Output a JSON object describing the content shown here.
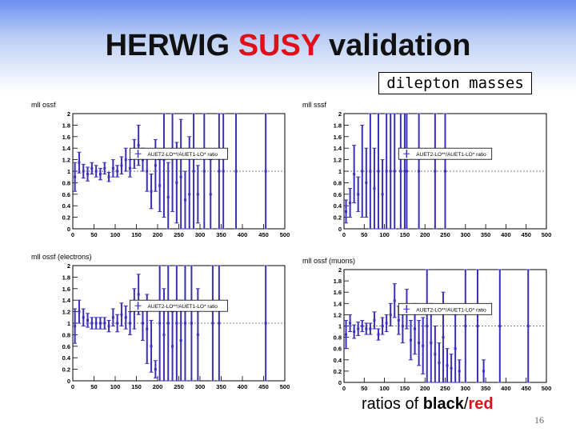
{
  "slide": {
    "title_part1": "HERWIG ",
    "title_accent": "SUSY",
    "title_part2": " validation",
    "tag": "dilepton masses",
    "footer_part1": "ratios of ",
    "footer_black": "black",
    "footer_sep": "/",
    "footer_red": "red",
    "page_number": "16",
    "accent_color": "#e0101a"
  },
  "chart_data": [
    {
      "type": "scatter",
      "title": "mll ossf",
      "legend": "AUET2-LO**/AUET1-LO* ratio",
      "series_color": "#3a2fb8",
      "xlim": [
        0,
        500
      ],
      "ylim": [
        0,
        2
      ],
      "xticks": [
        "0",
        "50",
        "100",
        "150",
        "200",
        "250",
        "300",
        "350",
        "400",
        "450",
        "500"
      ],
      "yticks": [
        "0",
        "0.2",
        "0.4",
        "0.6",
        "0.8",
        "1",
        "1.2",
        "1.4",
        "1.6",
        "1.8",
        "2"
      ],
      "reference_line": 1,
      "points": [
        {
          "x": 5,
          "y": 0.9,
          "err": 0.25
        },
        {
          "x": 15,
          "y": 1.15,
          "err": 0.18
        },
        {
          "x": 25,
          "y": 1.0,
          "err": 0.12
        },
        {
          "x": 35,
          "y": 0.95,
          "err": 0.12
        },
        {
          "x": 45,
          "y": 1.05,
          "err": 0.1
        },
        {
          "x": 55,
          "y": 1.0,
          "err": 0.1
        },
        {
          "x": 65,
          "y": 0.95,
          "err": 0.1
        },
        {
          "x": 75,
          "y": 1.05,
          "err": 0.1
        },
        {
          "x": 85,
          "y": 0.9,
          "err": 0.08
        },
        {
          "x": 95,
          "y": 1.05,
          "err": 0.15
        },
        {
          "x": 105,
          "y": 1.0,
          "err": 0.1
        },
        {
          "x": 115,
          "y": 1.1,
          "err": 0.15
        },
        {
          "x": 125,
          "y": 1.2,
          "err": 0.2
        },
        {
          "x": 135,
          "y": 1.05,
          "err": 0.15
        },
        {
          "x": 145,
          "y": 1.3,
          "err": 0.25
        },
        {
          "x": 155,
          "y": 1.45,
          "err": 0.35
        },
        {
          "x": 165,
          "y": 1.2,
          "err": 0.2
        },
        {
          "x": 175,
          "y": 1.0,
          "err": 0.35
        },
        {
          "x": 185,
          "y": 0.65,
          "err": 0.3
        },
        {
          "x": 195,
          "y": 1.1,
          "err": 0.45
        },
        {
          "x": 205,
          "y": 0.75,
          "err": 0.45
        },
        {
          "x": 215,
          "y": 1.2,
          "err": 1.0
        },
        {
          "x": 225,
          "y": 0.55,
          "err": 0.6
        },
        {
          "x": 235,
          "y": 1.3,
          "err": 1.0
        },
        {
          "x": 245,
          "y": 0.8,
          "err": 0.7
        },
        {
          "x": 255,
          "y": 0.9,
          "err": 1.0
        },
        {
          "x": 265,
          "y": 0.5,
          "err": 0.5
        },
        {
          "x": 275,
          "y": 0.6,
          "err": 1.0
        },
        {
          "x": 285,
          "y": 1.0,
          "err": 1.0
        },
        {
          "x": 295,
          "y": 0.6,
          "err": 0.5
        },
        {
          "x": 310,
          "y": 1.0,
          "err": 1.0
        },
        {
          "x": 325,
          "y": 0.6,
          "err": 0.6
        },
        {
          "x": 345,
          "y": 1.0,
          "err": 1.0
        },
        {
          "x": 355,
          "y": 1.0,
          "err": 1.0
        },
        {
          "x": 385,
          "y": 1.0,
          "err": 1.0
        },
        {
          "x": 455,
          "y": 1.0,
          "err": 1.0
        }
      ]
    },
    {
      "type": "scatter",
      "title": "mll sssf",
      "legend": "AUET2-LO**/AUET1-LO* ratio",
      "series_color": "#3a2fb8",
      "xlim": [
        0,
        500
      ],
      "ylim": [
        0,
        2
      ],
      "xticks": [
        "0",
        "50",
        "100",
        "150",
        "200",
        "250",
        "300",
        "350",
        "400",
        "450",
        "500"
      ],
      "yticks": [
        "0",
        "0.2",
        "0.4",
        "0.6",
        "0.8",
        "1",
        "1.2",
        "1.4",
        "1.6",
        "1.8",
        "2"
      ],
      "reference_line": 1,
      "points": [
        {
          "x": 5,
          "y": 0.3,
          "err": 0.2
        },
        {
          "x": 15,
          "y": 0.45,
          "err": 0.25
        },
        {
          "x": 25,
          "y": 0.95,
          "err": 0.5
        },
        {
          "x": 35,
          "y": 0.6,
          "err": 0.3
        },
        {
          "x": 45,
          "y": 1.0,
          "err": 0.8
        },
        {
          "x": 55,
          "y": 0.8,
          "err": 0.6
        },
        {
          "x": 65,
          "y": 1.0,
          "err": 1.0
        },
        {
          "x": 75,
          "y": 0.7,
          "err": 0.7
        },
        {
          "x": 85,
          "y": 1.0,
          "err": 1.0
        },
        {
          "x": 95,
          "y": 0.6,
          "err": 0.6
        },
        {
          "x": 105,
          "y": 1.0,
          "err": 1.0
        },
        {
          "x": 115,
          "y": 1.0,
          "err": 1.0
        },
        {
          "x": 125,
          "y": 1.0,
          "err": 1.0
        },
        {
          "x": 140,
          "y": 1.0,
          "err": 1.0
        },
        {
          "x": 150,
          "y": 1.0,
          "err": 1.0
        },
        {
          "x": 155,
          "y": 1.0,
          "err": 1.0
        },
        {
          "x": 185,
          "y": 1.0,
          "err": 1.0
        },
        {
          "x": 225,
          "y": 1.0,
          "err": 1.0
        },
        {
          "x": 250,
          "y": 1.0,
          "err": 1.0
        }
      ]
    },
    {
      "type": "scatter",
      "title": "mll ossf (electrons)",
      "legend": "AUET2-LO**/AUET1-LO* ratio",
      "series_color": "#3a2fb8",
      "xlim": [
        0,
        500
      ],
      "ylim": [
        0,
        2
      ],
      "xticks": [
        "0",
        "50",
        "100",
        "150",
        "200",
        "250",
        "300",
        "350",
        "400",
        "450",
        "500"
      ],
      "yticks": [
        "0",
        "0.2",
        "0.4",
        "0.6",
        "0.8",
        "1",
        "1.2",
        "1.4",
        "1.6",
        "1.8",
        "2"
      ],
      "reference_line": 1,
      "points": [
        {
          "x": 5,
          "y": 0.95,
          "err": 0.3
        },
        {
          "x": 15,
          "y": 1.2,
          "err": 0.2
        },
        {
          "x": 25,
          "y": 1.1,
          "err": 0.15
        },
        {
          "x": 35,
          "y": 1.05,
          "err": 0.12
        },
        {
          "x": 45,
          "y": 1.0,
          "err": 0.1
        },
        {
          "x": 55,
          "y": 1.0,
          "err": 0.1
        },
        {
          "x": 65,
          "y": 1.0,
          "err": 0.1
        },
        {
          "x": 75,
          "y": 1.0,
          "err": 0.1
        },
        {
          "x": 85,
          "y": 0.95,
          "err": 0.1
        },
        {
          "x": 95,
          "y": 1.1,
          "err": 0.15
        },
        {
          "x": 105,
          "y": 1.0,
          "err": 0.15
        },
        {
          "x": 115,
          "y": 1.15,
          "err": 0.2
        },
        {
          "x": 125,
          "y": 1.1,
          "err": 0.2
        },
        {
          "x": 135,
          "y": 1.0,
          "err": 0.2
        },
        {
          "x": 145,
          "y": 1.25,
          "err": 0.35
        },
        {
          "x": 155,
          "y": 1.5,
          "err": 0.35
        },
        {
          "x": 165,
          "y": 1.0,
          "err": 0.3
        },
        {
          "x": 175,
          "y": 0.9,
          "err": 0.6
        },
        {
          "x": 185,
          "y": 0.6,
          "err": 0.45
        },
        {
          "x": 195,
          "y": 0.2,
          "err": 0.15
        },
        {
          "x": 205,
          "y": 1.0,
          "err": 1.0
        },
        {
          "x": 215,
          "y": 0.8,
          "err": 0.8
        },
        {
          "x": 225,
          "y": 1.0,
          "err": 1.0
        },
        {
          "x": 235,
          "y": 0.6,
          "err": 0.6
        },
        {
          "x": 245,
          "y": 1.0,
          "err": 1.0
        },
        {
          "x": 255,
          "y": 0.7,
          "err": 0.7
        },
        {
          "x": 265,
          "y": 1.0,
          "err": 1.0
        },
        {
          "x": 280,
          "y": 1.0,
          "err": 1.0
        },
        {
          "x": 295,
          "y": 0.8,
          "err": 0.8
        },
        {
          "x": 330,
          "y": 1.0,
          "err": 1.0
        },
        {
          "x": 345,
          "y": 1.0,
          "err": 1.0
        },
        {
          "x": 455,
          "y": 1.0,
          "err": 1.0
        }
      ]
    },
    {
      "type": "scatter",
      "title": "mll ossf (muons)",
      "legend": "AUET2-LO**/AUET1-LO* ratio",
      "series_color": "#3a2fb8",
      "xlim": [
        0,
        500
      ],
      "ylim": [
        0,
        2
      ],
      "xticks": [
        "0",
        "50",
        "100",
        "150",
        "200",
        "250",
        "300",
        "350",
        "400",
        "450",
        "500"
      ],
      "yticks": [
        "0",
        "0.2",
        "0.4",
        "0.6",
        "0.8",
        "1",
        "1.2",
        "1.4",
        "1.6",
        "1.8",
        "2"
      ],
      "reference_line": 1,
      "points": [
        {
          "x": 5,
          "y": 0.85,
          "err": 0.25
        },
        {
          "x": 15,
          "y": 1.05,
          "err": 0.15
        },
        {
          "x": 25,
          "y": 0.9,
          "err": 0.12
        },
        {
          "x": 35,
          "y": 0.95,
          "err": 0.12
        },
        {
          "x": 45,
          "y": 1.0,
          "err": 0.1
        },
        {
          "x": 55,
          "y": 0.95,
          "err": 0.1
        },
        {
          "x": 65,
          "y": 0.95,
          "err": 0.1
        },
        {
          "x": 75,
          "y": 1.1,
          "err": 0.15
        },
        {
          "x": 85,
          "y": 0.85,
          "err": 0.1
        },
        {
          "x": 95,
          "y": 1.0,
          "err": 0.15
        },
        {
          "x": 105,
          "y": 1.05,
          "err": 0.15
        },
        {
          "x": 115,
          "y": 1.2,
          "err": 0.2
        },
        {
          "x": 125,
          "y": 1.45,
          "err": 0.3
        },
        {
          "x": 135,
          "y": 1.1,
          "err": 0.25
        },
        {
          "x": 145,
          "y": 1.0,
          "err": 0.3
        },
        {
          "x": 155,
          "y": 1.3,
          "err": 0.35
        },
        {
          "x": 165,
          "y": 0.75,
          "err": 0.35
        },
        {
          "x": 175,
          "y": 0.95,
          "err": 0.45
        },
        {
          "x": 185,
          "y": 0.7,
          "err": 0.4
        },
        {
          "x": 195,
          "y": 0.65,
          "err": 0.5
        },
        {
          "x": 205,
          "y": 1.0,
          "err": 1.0
        },
        {
          "x": 215,
          "y": 0.7,
          "err": 0.7
        },
        {
          "x": 225,
          "y": 0.5,
          "err": 0.5
        },
        {
          "x": 235,
          "y": 0.35,
          "err": 0.35
        },
        {
          "x": 245,
          "y": 0.8,
          "err": 0.8
        },
        {
          "x": 255,
          "y": 0.3,
          "err": 0.3
        },
        {
          "x": 265,
          "y": 0.25,
          "err": 0.25
        },
        {
          "x": 275,
          "y": 0.6,
          "err": 0.6
        },
        {
          "x": 285,
          "y": 0.2,
          "err": 0.2
        },
        {
          "x": 300,
          "y": 1.0,
          "err": 1.0
        },
        {
          "x": 330,
          "y": 1.0,
          "err": 1.0
        },
        {
          "x": 345,
          "y": 0.2,
          "err": 0.2
        },
        {
          "x": 385,
          "y": 1.0,
          "err": 1.0
        },
        {
          "x": 455,
          "y": 1.0,
          "err": 1.0
        }
      ]
    }
  ]
}
